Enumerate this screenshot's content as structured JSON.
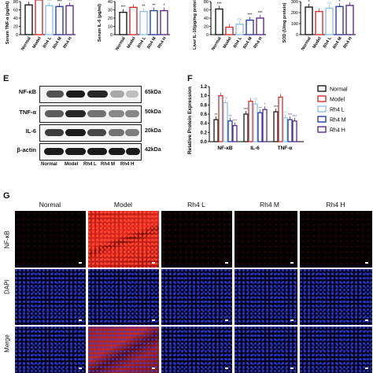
{
  "panels_top": [
    {
      "ylabel": "Serum TNF-α (pg/ml)",
      "ticks": [
        "80",
        "60",
        "40",
        "20",
        "0"
      ],
      "ymax": 80,
      "values": [
        72,
        84,
        70,
        68,
        70
      ],
      "stars": [
        "**",
        "",
        "***",
        "***",
        "***"
      ]
    },
    {
      "ylabel": "Serum IL-6 (pg/ml)",
      "ticks": [
        "40",
        "30",
        "20",
        "10",
        "0"
      ],
      "ymax": 40,
      "values": [
        27,
        33,
        28,
        29,
        29
      ],
      "stars": [
        "***",
        "",
        "**",
        "**",
        "*"
      ]
    },
    {
      "ylabel": "Liver IL-10(pg/mg protein)",
      "ticks": [
        "80",
        "60",
        "40",
        "20",
        "0"
      ],
      "ymax": 80,
      "values": [
        62,
        18,
        25,
        35,
        40
      ],
      "stars": [
        "***",
        "",
        "ns",
        "***",
        "***"
      ]
    },
    {
      "ylabel": "SOD (U/mg protein)",
      "ticks": [
        "300",
        "200",
        "100",
        "0"
      ],
      "ymax": 300,
      "values": [
        250,
        210,
        240,
        255,
        265
      ],
      "stars": [
        "*",
        "",
        "ns",
        "*",
        "*"
      ]
    }
  ],
  "groups": [
    "Normal",
    "Model",
    "Rh4 L",
    "Rh4 M",
    "Rh4 H"
  ],
  "colors": [
    "#1a1a1a",
    "#d62f2f",
    "#8fc3e6",
    "#2b3fa8",
    "#5a2d8c"
  ],
  "panel_e": {
    "letter": "E",
    "proteins": [
      {
        "name": "NF-κB",
        "kda": "65kDa"
      },
      {
        "name": "TNF-α",
        "kda": "50kDa"
      },
      {
        "name": "IL-6",
        "kda": "20kDa"
      },
      {
        "name": "β-actin",
        "kda": "42kDa"
      }
    ],
    "lanes": [
      "Normal",
      "Model",
      "Rh4 L",
      "Rh4 M",
      "Rh4 H"
    ]
  },
  "chart_data": {
    "type": "bar",
    "ylabel": "Relative Protein Expression",
    "categories": [
      "NF-κB",
      "IL-6",
      "TNF-α"
    ],
    "ylim": [
      0,
      1.2
    ],
    "yticks": [
      "1.2",
      "1.0",
      "0.8",
      "0.6",
      "0.4",
      "0.2",
      "0.0"
    ],
    "series": [
      {
        "name": "Normal",
        "values": [
          0.48,
          0.6,
          0.65
        ],
        "stars": [
          "**",
          "***",
          "***"
        ]
      },
      {
        "name": "Model",
        "values": [
          1.0,
          0.88,
          0.97
        ],
        "stars": [
          "",
          "",
          ""
        ]
      },
      {
        "name": "Rh4 L",
        "values": [
          0.85,
          0.82,
          0.52
        ],
        "stars": [
          "ns",
          "ns",
          "***"
        ]
      },
      {
        "name": "Rh4 M",
        "values": [
          0.45,
          0.63,
          0.48
        ],
        "stars": [
          "**",
          "**",
          "***"
        ]
      },
      {
        "name": "Rh4 H",
        "values": [
          0.35,
          0.7,
          0.45
        ],
        "stars": [
          "***",
          "*",
          "***"
        ]
      }
    ]
  },
  "panel_f_letter": "F",
  "panel_g": {
    "letter": "G",
    "columns": [
      "Normal",
      "Model",
      "Rh4 L",
      "Rh4 M",
      "Rh4 H"
    ],
    "rows": [
      "NF-κB",
      "DAPI",
      "Merge"
    ]
  }
}
